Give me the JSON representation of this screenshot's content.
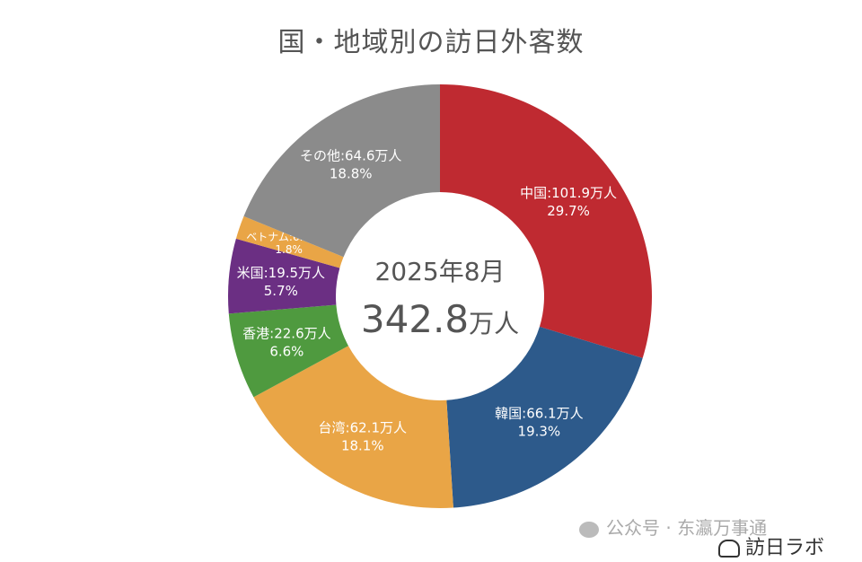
{
  "chart_data": {
    "type": "pie",
    "donut": true,
    "title": "国・地域別の訪日外客数",
    "center_label": {
      "line1": "2025年8月",
      "value": "342.8",
      "unit": "万人"
    },
    "unit": "万人",
    "start": "top",
    "direction": "clockwise",
    "slices": [
      {
        "name": "中国",
        "value": 101.9,
        "percent": 29.7,
        "color": "#bf2a31"
      },
      {
        "name": "韓国",
        "value": 66.1,
        "percent": 19.3,
        "color": "#2d5a8b"
      },
      {
        "name": "台湾",
        "value": 62.1,
        "percent": 18.1,
        "color": "#e9a546"
      },
      {
        "name": "香港",
        "value": 22.6,
        "percent": 6.6,
        "color": "#4f9a3f"
      },
      {
        "name": "米国",
        "value": 19.5,
        "percent": 5.7,
        "color": "#6b2f83"
      },
      {
        "name": "ベトナム",
        "value": 6.1,
        "percent": 1.8,
        "color": "#e9a546"
      },
      {
        "name": "その他",
        "value": 64.6,
        "percent": 18.8,
        "color": "#8b8b8b"
      }
    ]
  },
  "watermark": {
    "text": "公众号 · 东瀛万事通",
    "icon": "wechat-icon"
  },
  "logo": {
    "text": "訪日ラボ",
    "icon": "bowl-icon"
  }
}
